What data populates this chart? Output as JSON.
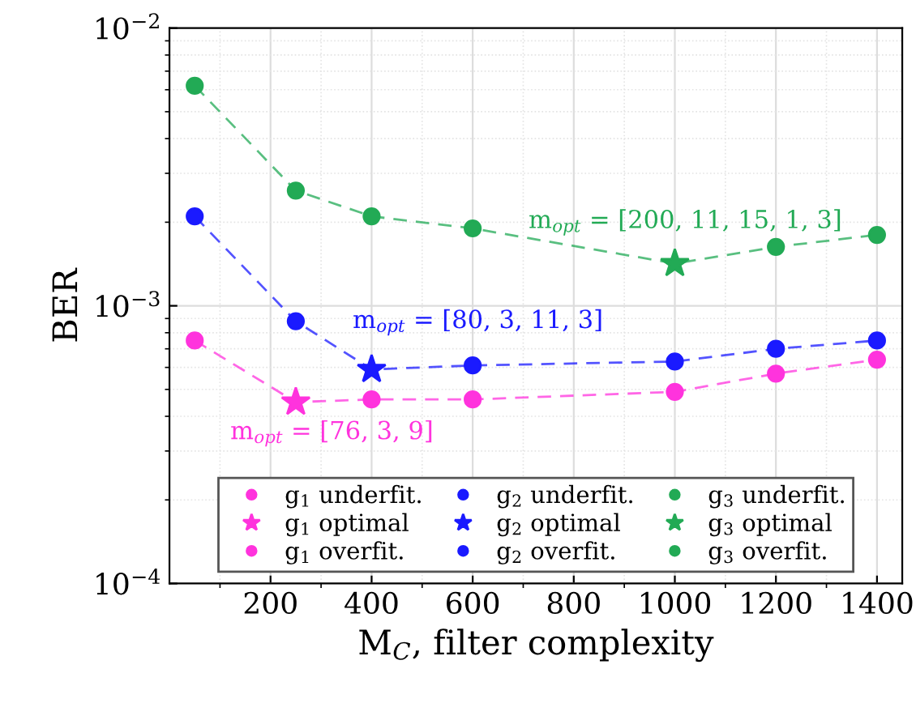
{
  "chart_data": {
    "type": "line",
    "xlabel": "M$_{C}$, filter complexity",
    "ylabel": "BER",
    "log": "y",
    "grid": true,
    "legend": "bottom",
    "line_style": "dashed",
    "xlim": [
      0,
      1450
    ],
    "xticks": [
      200,
      400,
      600,
      800,
      1000,
      1200,
      1400
    ],
    "ylim": [
      0.0001,
      0.01
    ],
    "yticks": [
      {
        "value": 0.0001,
        "label": "10$^{−4}$"
      },
      {
        "value": 0.001,
        "label": "10$^{−3}$"
      },
      {
        "value": 0.01,
        "label": "10$^{−2}$"
      }
    ],
    "series": [
      {
        "color": "#ff33dd",
        "marker": "none",
        "x": [
          50,
          250,
          400,
          600,
          1000,
          1200,
          1400
        ],
        "values": [
          0.00075,
          0.00045,
          0.00046,
          0.00046,
          0.00049,
          0.00057,
          0.00064
        ]
      },
      {
        "color": "#1a1aff",
        "marker": "none",
        "x": [
          50,
          250,
          400,
          600,
          1000,
          1200,
          1400
        ],
        "values": [
          0.0021,
          0.00088,
          0.00059,
          0.00061,
          0.00063,
          0.0007,
          0.00075
        ]
      },
      {
        "color": "#22aa55",
        "marker": "none",
        "x": [
          50,
          250,
          400,
          600,
          1000,
          1200,
          1400
        ],
        "values": [
          0.0062,
          0.0026,
          0.0021,
          0.0019,
          0.00142,
          0.00163,
          0.0018
        ]
      },
      {
        "type": "scatter",
        "name": "g$_{1}$ underfit.",
        "color": "#ff33dd",
        "marker": "circle",
        "x": [
          50
        ],
        "values": [
          0.00075
        ]
      },
      {
        "type": "scatter",
        "name": "g$_{1}$ optimal",
        "color": "#ff33dd",
        "marker": "star",
        "x": [
          250
        ],
        "values": [
          0.00045
        ]
      },
      {
        "type": "scatter",
        "name": "g$_{1}$ overfit.",
        "color": "#ff33dd",
        "marker": "circle",
        "x": [
          400,
          600,
          1000,
          1200,
          1400
        ],
        "values": [
          0.00046,
          0.00046,
          0.00049,
          0.00057,
          0.00064
        ]
      },
      {
        "type": "scatter",
        "name": "g$_{2}$ underfit.",
        "color": "#1a1aff",
        "marker": "circle",
        "x": [
          50,
          250
        ],
        "values": [
          0.0021,
          0.00088
        ]
      },
      {
        "type": "scatter",
        "name": "g$_{2}$ optimal",
        "color": "#1a1aff",
        "marker": "star",
        "x": [
          400
        ],
        "values": [
          0.00059
        ]
      },
      {
        "type": "scatter",
        "name": "g$_{2}$ overfit.",
        "color": "#1a1aff",
        "marker": "circle",
        "x": [
          600,
          1000,
          1200,
          1400
        ],
        "values": [
          0.00061,
          0.00063,
          0.0007,
          0.00075
        ]
      },
      {
        "type": "scatter",
        "name": "g$_{3}$ underfit.",
        "color": "#22aa55",
        "marker": "circle",
        "x": [
          50,
          250,
          400,
          600
        ],
        "values": [
          0.0062,
          0.0026,
          0.0021,
          0.0019
        ]
      },
      {
        "type": "scatter",
        "name": "g$_{3}$ optimal",
        "color": "#22aa55",
        "marker": "star",
        "x": [
          1000
        ],
        "values": [
          0.00142
        ]
      },
      {
        "type": "scatter",
        "name": "g$_{3}$ overfit.",
        "color": "#22aa55",
        "marker": "circle",
        "x": [
          1200,
          1400
        ],
        "values": [
          0.00163,
          0.0018
        ]
      }
    ],
    "annotations": [
      "m$_{opt}$ = [76, 3, 9]",
      "m$_{opt}$ = [80, 3, 11, 3]",
      "m$_{opt}$ = [200, 11, 15, 1, 3]"
    ]
  }
}
